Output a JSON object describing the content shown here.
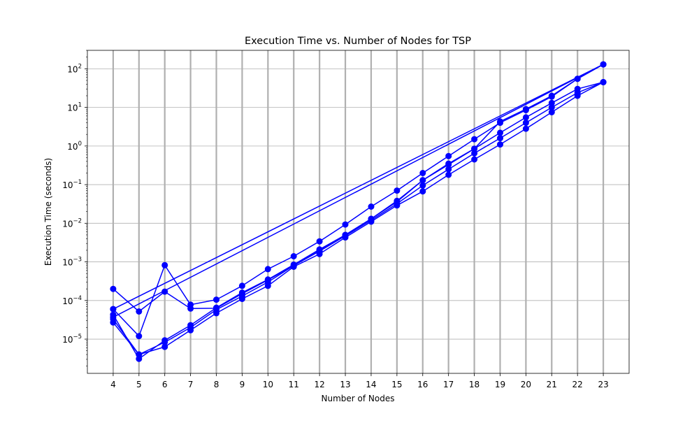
{
  "chart_data": {
    "type": "line",
    "title": "Execution Time vs. Number of Nodes for TSP",
    "xlabel": "Number of Nodes",
    "ylabel": "Execution Time (seconds)",
    "yscale": "log",
    "grid": true,
    "xlim": [
      3,
      24
    ],
    "ylim": [
      1.3e-06,
      300
    ],
    "x_ticks": [
      4,
      5,
      6,
      7,
      8,
      9,
      10,
      11,
      12,
      13,
      14,
      15,
      16,
      17,
      18,
      19,
      20,
      21,
      22,
      23
    ],
    "y_ticks": [
      {
        "value": 1e-05,
        "mantissa": "10",
        "exp": "−5"
      },
      {
        "value": 0.0001,
        "mantissa": "10",
        "exp": "−4"
      },
      {
        "value": 0.001,
        "mantissa": "10",
        "exp": "−3"
      },
      {
        "value": 0.01,
        "mantissa": "10",
        "exp": "−2"
      },
      {
        "value": 0.1,
        "mantissa": "10",
        "exp": "−1"
      },
      {
        "value": 1,
        "mantissa": "10",
        "exp": "0"
      },
      {
        "value": 10,
        "mantissa": "10",
        "exp": "1"
      },
      {
        "value": 100,
        "mantissa": "10",
        "exp": "2"
      }
    ],
    "color": "#0000ff",
    "series": [
      {
        "x": [
          4,
          5,
          6,
          7,
          8,
          9,
          10,
          11,
          12,
          13,
          14,
          15,
          16,
          17,
          18,
          19,
          20,
          21,
          22,
          23
        ],
        "values": [
          4.3e-05,
          3.1e-06,
          9.3e-06,
          2.3e-05,
          6.5e-05,
          0.00016,
          0.00035,
          0.00085,
          0.0021,
          0.005,
          0.013,
          0.036,
          0.13,
          0.35,
          0.85,
          2.2,
          5.5,
          13,
          30,
          45
        ]
      },
      {
        "x": [
          4,
          5,
          6,
          7,
          8,
          9,
          10,
          11,
          12,
          13,
          14,
          15,
          16,
          17,
          18,
          19,
          20,
          21,
          22,
          23
        ],
        "values": [
          2.7e-05,
          4e-06,
          6.3e-06,
          1.7e-05,
          4.7e-05,
          0.00011,
          0.00024,
          0.00075,
          0.0016,
          0.0043,
          0.011,
          0.029,
          0.067,
          0.18,
          0.45,
          1.1,
          2.8,
          7.5,
          20,
          45
        ]
      },
      {
        "x": [
          4,
          5,
          6,
          7,
          8,
          9,
          10,
          11,
          12,
          13,
          14,
          15,
          16,
          17,
          18,
          19,
          20,
          21,
          22,
          23
        ],
        "values": [
          3.3e-05,
          4e-06,
          8.3e-06,
          2e-05,
          5.8e-05,
          0.00013,
          0.0003,
          0.0008,
          0.0019,
          0.0047,
          0.012,
          0.032,
          0.095,
          0.25,
          0.65,
          1.6,
          4.0,
          10,
          24,
          45
        ]
      },
      {
        "x": [
          4,
          5,
          6,
          7,
          8,
          9,
          10,
          11,
          12,
          13,
          14,
          15,
          16,
          17,
          18,
          19,
          20,
          21,
          22,
          23,
          4
        ],
        "values": [
          6e-05,
          1.2e-05,
          0.00082,
          7.8e-05,
          0.000105,
          0.00024,
          0.00065,
          0.0014,
          0.0034,
          0.0093,
          0.027,
          0.07,
          0.2,
          0.55,
          1.5,
          4.0,
          8.5,
          19,
          55,
          130,
          6e-05
        ]
      },
      {
        "x": [
          4,
          5,
          6,
          7,
          8,
          9,
          10,
          11,
          12,
          13,
          14,
          15,
          16,
          17,
          18,
          19,
          20,
          21,
          22,
          23,
          4
        ],
        "values": [
          0.0002,
          5.2e-05,
          0.00017,
          6.2e-05,
          6.3e-05,
          0.00015,
          0.00034,
          0.0008,
          0.002,
          0.005,
          0.013,
          0.038,
          0.13,
          0.33,
          0.85,
          4.3,
          9.0,
          20,
          55,
          130,
          3.7e-05
        ]
      }
    ]
  }
}
